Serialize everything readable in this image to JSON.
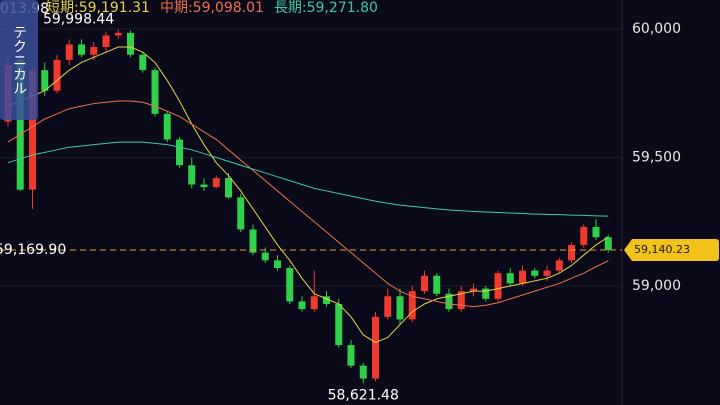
{
  "chart_data": {
    "type": "candlestick",
    "series": [
      {
        "name": "短期:59,191.31",
        "color": "#e6d34a",
        "values": [
          59700,
          59720,
          59740,
          59760,
          59800,
          59840,
          59870,
          59890,
          59910,
          59930,
          59930,
          59910,
          59870,
          59800,
          59720,
          59630,
          59550,
          59480,
          59430,
          59370,
          59300,
          59230,
          59160,
          59100,
          59030,
          58970,
          58950,
          58930,
          58880,
          58810,
          58780,
          58800,
          58850,
          58900,
          58930,
          58950,
          58960,
          58970,
          58980,
          58980,
          58990,
          59000,
          59010,
          59020,
          59030,
          59050,
          59080,
          59120,
          59160,
          59191.31
        ]
      },
      {
        "name": "中期:59,098.01",
        "color": "#f0704a",
        "values": [
          59560,
          59590,
          59620,
          59650,
          59670,
          59690,
          59700,
          59710,
          59715,
          59720,
          59720,
          59715,
          59700,
          59680,
          59660,
          59630,
          59600,
          59570,
          59530,
          59490,
          59450,
          59410,
          59370,
          59330,
          59290,
          59250,
          59210,
          59170,
          59130,
          59090,
          59050,
          59010,
          58980,
          58960,
          58950,
          58940,
          58930,
          58925,
          58920,
          58925,
          58935,
          58950,
          58965,
          58980,
          58995,
          59010,
          59030,
          59050,
          59075,
          59098.01
        ]
      },
      {
        "name": "長期:59,271.80",
        "color": "#3fc9a0",
        "values": [
          59480,
          59495,
          59510,
          59520,
          59530,
          59540,
          59545,
          59550,
          59555,
          59560,
          59560,
          59560,
          59555,
          59550,
          59540,
          59530,
          59515,
          59500,
          59485,
          59470,
          59455,
          59440,
          59425,
          59410,
          59395,
          59380,
          59370,
          59360,
          59350,
          59340,
          59330,
          59322,
          59315,
          59310,
          59305,
          59300,
          59296,
          59293,
          59290,
          59288,
          59286,
          59284,
          59282,
          59280,
          59279,
          59278,
          59276,
          59275,
          59273,
          59271.8
        ]
      }
    ],
    "open": [
      59640,
      59880,
      59375,
      59840,
      59760,
      59880,
      59940,
      59900,
      59930,
      59975,
      59985,
      59900,
      59840,
      59670,
      59570,
      59470,
      59395,
      59385,
      59420,
      59345,
      59220,
      59130,
      59100,
      59070,
      58940,
      58910,
      58960,
      58930,
      58770,
      58690,
      58640,
      58880,
      58960,
      58870,
      58980,
      59040,
      58970,
      58910,
      58980,
      58990,
      58950,
      59050,
      59010,
      59060,
      59040,
      59060,
      59100,
      59160,
      59230,
      59190
    ],
    "high": [
      59890,
      59900,
      59860,
      59870,
      59900,
      59960,
      59960,
      59950,
      59990,
      59998.44,
      59995,
      59910,
      59850,
      59680,
      59580,
      59500,
      59420,
      59430,
      59440,
      59360,
      59240,
      59150,
      59120,
      59080,
      58960,
      59060,
      58980,
      58950,
      58790,
      58700,
      58900,
      58990,
      58990,
      59000,
      59060,
      59050,
      58990,
      59000,
      59010,
      59000,
      59060,
      59070,
      59080,
      59070,
      59080,
      59110,
      59170,
      59240,
      59260,
      59200
    ],
    "low": [
      59620,
      59370,
      59300,
      59740,
      59750,
      59860,
      59890,
      59880,
      59910,
      59960,
      59890,
      59830,
      59660,
      59560,
      59460,
      59380,
      59370,
      59380,
      59340,
      59210,
      59120,
      59090,
      59060,
      58930,
      58900,
      58900,
      58920,
      58760,
      58680,
      58621.48,
      58630,
      58870,
      58850,
      58860,
      58970,
      58960,
      58900,
      58900,
      58960,
      58940,
      58940,
      59000,
      59000,
      59030,
      59020,
      59050,
      59090,
      59150,
      59180,
      59130
    ],
    "close": [
      59860,
      59375,
      59840,
      59760,
      59880,
      59940,
      59900,
      59930,
      59975,
      59985,
      59900,
      59840,
      59670,
      59570,
      59470,
      59395,
      59385,
      59420,
      59345,
      59220,
      59130,
      59100,
      59070,
      58940,
      58910,
      58960,
      58930,
      58770,
      58690,
      58640,
      58880,
      58960,
      58870,
      58980,
      59040,
      58970,
      58910,
      58980,
      58990,
      58950,
      59050,
      59010,
      59060,
      59040,
      59060,
      59100,
      59160,
      59230,
      59190,
      59140.23
    ],
    "up_color": "#f03a2e",
    "down_color": "#2fd04a",
    "ylim": [
      58537,
      60113
    ],
    "yticks": [
      {
        "value": 59000,
        "label": "59,000"
      },
      {
        "value": 59500,
        "label": "59,500"
      },
      {
        "value": 60000,
        "label": "60,000"
      }
    ],
    "grid": true,
    "high_label": "59,998.44",
    "low_label": "58,621.48",
    "left_label": "59,169.90",
    "top_left_label": "013.98",
    "last_price": {
      "value": 59140.23,
      "label": "59,140.23"
    },
    "button": "テクニカル"
  }
}
